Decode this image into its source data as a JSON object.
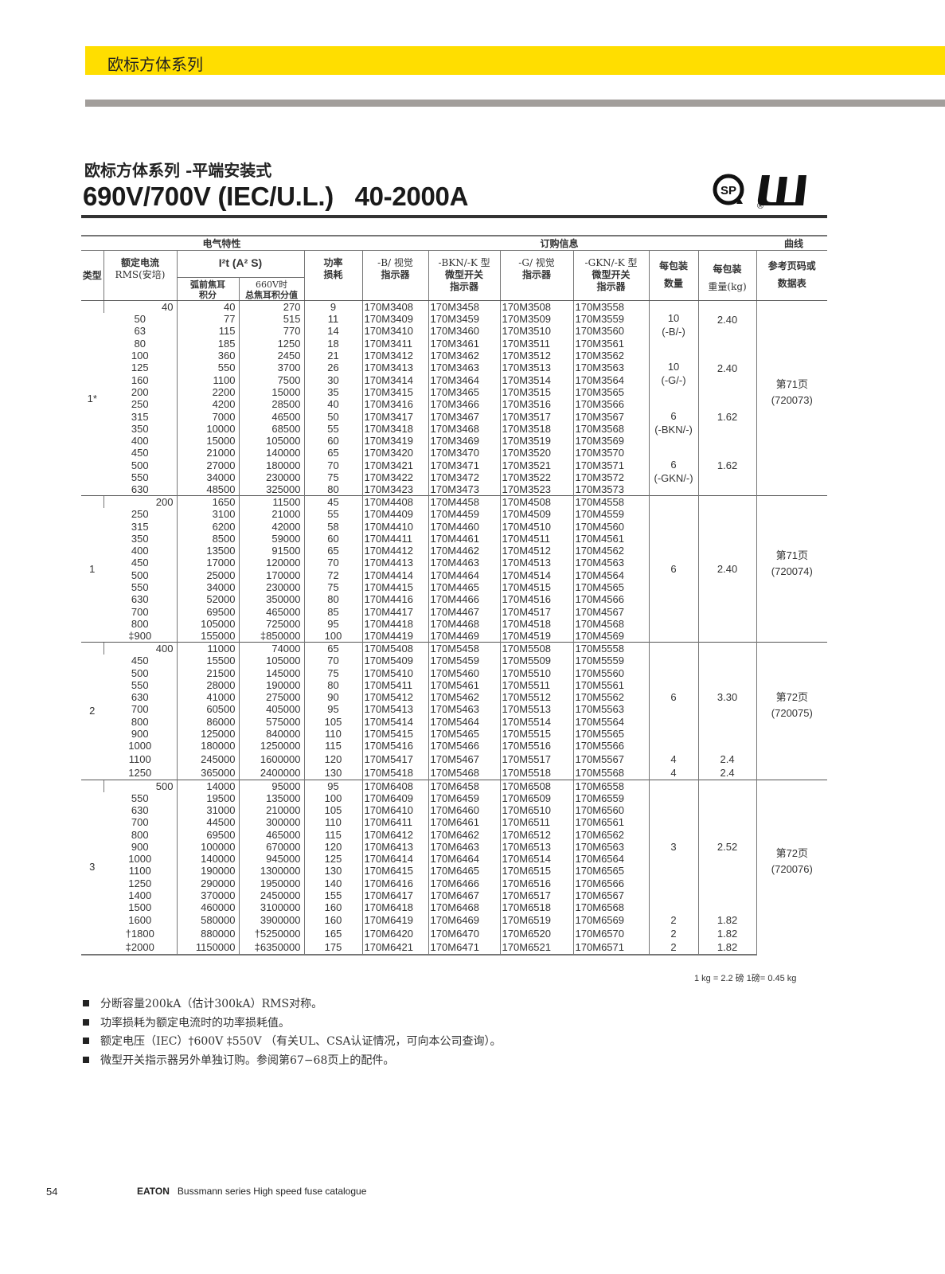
{
  "header": {
    "band_title": "欧标方体系列"
  },
  "page_subtitle": "欧标方体系列 -平端安装式",
  "page_title": "690V/700V (IEC/U.L.)   40-2000A",
  "logos": [
    "CSA",
    "UL"
  ],
  "colors": {
    "accent_yellow": "#ffde00",
    "gray_bar": "#a29e9b"
  },
  "table": {
    "group_headers": {
      "electrical": "电气特性",
      "ordering": "订购信息",
      "curve": "曲线"
    },
    "headers": {
      "type": "类型",
      "rated_current": [
        "额定电流",
        "RMS(安培)"
      ],
      "i2t": "I²t (A² S)",
      "pre_arc": [
        "弧前焦耳",
        "积分"
      ],
      "total": [
        "660V时",
        "总焦耳积分值"
      ],
      "power": [
        "功率",
        "损耗"
      ],
      "b": [
        "-B/ 视觉",
        "指示器"
      ],
      "bkn": [
        "-BKN/-K 型",
        "微型开关",
        "指示器"
      ],
      "g": [
        "-G/ 视觉",
        "指示器"
      ],
      "gkn": [
        "-GKN/-K 型",
        "微型开关",
        "指示器"
      ],
      "qty": [
        "每包装",
        "数量"
      ],
      "weight": [
        "每包装",
        "重量(kg)"
      ],
      "ref": [
        "参考页码或",
        "数据表"
      ]
    },
    "sections": [
      {
        "type": "1*",
        "ref_page": "第71页",
        "ref_sheet": "(720073)",
        "packs": [
          {
            "rows": 4,
            "qty": "10",
            "qty_note": "(-B/-)",
            "weight": "2.40"
          },
          {
            "rows": 4,
            "qty": "10",
            "qty_note": "(-G/-)",
            "weight": "2.40"
          },
          {
            "rows": 4,
            "qty": "6",
            "qty_note": "(-BKN/-)",
            "weight": "1.62"
          },
          {
            "rows": 4,
            "qty": "6",
            "qty_note": "(-GKN/-)",
            "weight": "1.62"
          }
        ],
        "rows": [
          [
            "40",
            "40",
            "270",
            "9",
            "170M3408",
            "170M3458",
            "170M3508",
            "170M3558"
          ],
          [
            "50",
            "77",
            "515",
            "11",
            "170M3409",
            "170M3459",
            "170M3509",
            "170M3559"
          ],
          [
            "63",
            "115",
            "770",
            "14",
            "170M3410",
            "170M3460",
            "170M3510",
            "170M3560"
          ],
          [
            "80",
            "185",
            "1250",
            "18",
            "170M3411",
            "170M3461",
            "170M3511",
            "170M3561"
          ],
          [
            "100",
            "360",
            "2450",
            "21",
            "170M3412",
            "170M3462",
            "170M3512",
            "170M3562"
          ],
          [
            "125",
            "550",
            "3700",
            "26",
            "170M3413",
            "170M3463",
            "170M3513",
            "170M3563"
          ],
          [
            "160",
            "1100",
            "7500",
            "30",
            "170M3414",
            "170M3464",
            "170M3514",
            "170M3564"
          ],
          [
            "200",
            "2200",
            "15000",
            "35",
            "170M3415",
            "170M3465",
            "170M3515",
            "170M3565"
          ],
          [
            "250",
            "4200",
            "28500",
            "40",
            "170M3416",
            "170M3466",
            "170M3516",
            "170M3566"
          ],
          [
            "315",
            "7000",
            "46500",
            "50",
            "170M3417",
            "170M3467",
            "170M3517",
            "170M3567"
          ],
          [
            "350",
            "10000",
            "68500",
            "55",
            "170M3418",
            "170M3468",
            "170M3518",
            "170M3568"
          ],
          [
            "400",
            "15000",
            "105000",
            "60",
            "170M3419",
            "170M3469",
            "170M3519",
            "170M3569"
          ],
          [
            "450",
            "21000",
            "140000",
            "65",
            "170M3420",
            "170M3470",
            "170M3520",
            "170M3570"
          ],
          [
            "500",
            "27000",
            "180000",
            "70",
            "170M3421",
            "170M3471",
            "170M3521",
            "170M3571"
          ],
          [
            "550",
            "34000",
            "230000",
            "75",
            "170M3422",
            "170M3472",
            "170M3522",
            "170M3572"
          ],
          [
            "630",
            "48500",
            "325000",
            "80",
            "170M3423",
            "170M3473",
            "170M3523",
            "170M3573"
          ]
        ]
      },
      {
        "type": "1",
        "ref_page": "第71页",
        "ref_sheet": "(720074)",
        "packs": [
          {
            "rows": 12,
            "qty": "6",
            "weight": "2.40"
          }
        ],
        "rows": [
          [
            "200",
            "1650",
            "11500",
            "45",
            "170M4408",
            "170M4458",
            "170M4508",
            "170M4558"
          ],
          [
            "250",
            "3100",
            "21000",
            "55",
            "170M4409",
            "170M4459",
            "170M4509",
            "170M4559"
          ],
          [
            "315",
            "6200",
            "42000",
            "58",
            "170M4410",
            "170M4460",
            "170M4510",
            "170M4560"
          ],
          [
            "350",
            "8500",
            "59000",
            "60",
            "170M4411",
            "170M4461",
            "170M4511",
            "170M4561"
          ],
          [
            "400",
            "13500",
            "91500",
            "65",
            "170M4412",
            "170M4462",
            "170M4512",
            "170M4562"
          ],
          [
            "450",
            "17000",
            "120000",
            "70",
            "170M4413",
            "170M4463",
            "170M4513",
            "170M4563"
          ],
          [
            "500",
            "25000",
            "170000",
            "72",
            "170M4414",
            "170M4464",
            "170M4514",
            "170M4564"
          ],
          [
            "550",
            "34000",
            "230000",
            "75",
            "170M4415",
            "170M4465",
            "170M4515",
            "170M4565"
          ],
          [
            "630",
            "52000",
            "350000",
            "80",
            "170M4416",
            "170M4466",
            "170M4516",
            "170M4566"
          ],
          [
            "700",
            "69500",
            "465000",
            "85",
            "170M4417",
            "170M4467",
            "170M4517",
            "170M4567"
          ],
          [
            "800",
            "105000",
            "725000",
            "95",
            "170M4418",
            "170M4468",
            "170M4518",
            "170M4568"
          ],
          [
            "‡900",
            "155000",
            "‡850000",
            "100",
            "170M4419",
            "170M4469",
            "170M4519",
            "170M4569"
          ]
        ]
      },
      {
        "type": "2",
        "ref_page": "第72页",
        "ref_sheet": "(720075)",
        "packs": [
          {
            "rows": 9,
            "qty": "6",
            "weight": "3.30"
          },
          {
            "rows": 1,
            "qty": "4",
            "weight": "2.4"
          },
          {
            "rows": 1,
            "qty": "4",
            "weight": "2.4"
          }
        ],
        "rows": [
          [
            "400",
            "11000",
            "74000",
            "65",
            "170M5408",
            "170M5458",
            "170M5508",
            "170M5558"
          ],
          [
            "450",
            "15500",
            "105000",
            "70",
            "170M5409",
            "170M5459",
            "170M5509",
            "170M5559"
          ],
          [
            "500",
            "21500",
            "145000",
            "75",
            "170M5410",
            "170M5460",
            "170M5510",
            "170M5560"
          ],
          [
            "550",
            "28000",
            "190000",
            "80",
            "170M5411",
            "170M5461",
            "170M5511",
            "170M5561"
          ],
          [
            "630",
            "41000",
            "275000",
            "90",
            "170M5412",
            "170M5462",
            "170M5512",
            "170M5562"
          ],
          [
            "700",
            "60500",
            "405000",
            "95",
            "170M5413",
            "170M5463",
            "170M5513",
            "170M5563"
          ],
          [
            "800",
            "86000",
            "575000",
            "105",
            "170M5414",
            "170M5464",
            "170M5514",
            "170M5564"
          ],
          [
            "900",
            "125000",
            "840000",
            "110",
            "170M5415",
            "170M5465",
            "170M5515",
            "170M5565"
          ],
          [
            "1000",
            "180000",
            "1250000",
            "115",
            "170M5416",
            "170M5466",
            "170M5516",
            "170M5566"
          ],
          [
            "1100",
            "245000",
            "1600000",
            "120",
            "170M5417",
            "170M5467",
            "170M5517",
            "170M5567"
          ],
          [
            "1250",
            "365000",
            "2400000",
            "130",
            "170M5418",
            "170M5468",
            "170M5518",
            "170M5568"
          ]
        ]
      },
      {
        "type": "3",
        "ref_page": "第72页",
        "ref_sheet": "(720076)",
        "packs": [
          {
            "rows": 11,
            "qty": "3",
            "weight": "2.52"
          },
          {
            "rows": 1,
            "qty": "2",
            "weight": "1.82"
          },
          {
            "rows": 1,
            "qty": "2",
            "weight": "1.82"
          },
          {
            "rows": 1,
            "qty": "2",
            "weight": "1.82"
          }
        ],
        "rows": [
          [
            "500",
            "14000",
            "95000",
            "95",
            "170M6408",
            "170M6458",
            "170M6508",
            "170M6558"
          ],
          [
            "550",
            "19500",
            "135000",
            "100",
            "170M6409",
            "170M6459",
            "170M6509",
            "170M6559"
          ],
          [
            "630",
            "31000",
            "210000",
            "105",
            "170M6410",
            "170M6460",
            "170M6510",
            "170M6560"
          ],
          [
            "700",
            "44500",
            "300000",
            "110",
            "170M6411",
            "170M6461",
            "170M6511",
            "170M6561"
          ],
          [
            "800",
            "69500",
            "465000",
            "115",
            "170M6412",
            "170M6462",
            "170M6512",
            "170M6562"
          ],
          [
            "900",
            "100000",
            "670000",
            "120",
            "170M6413",
            "170M6463",
            "170M6513",
            "170M6563"
          ],
          [
            "1000",
            "140000",
            "945000",
            "125",
            "170M6414",
            "170M6464",
            "170M6514",
            "170M6564"
          ],
          [
            "1100",
            "190000",
            "1300000",
            "130",
            "170M6415",
            "170M6465",
            "170M6515",
            "170M6565"
          ],
          [
            "1250",
            "290000",
            "1950000",
            "140",
            "170M6416",
            "170M6466",
            "170M6516",
            "170M6566"
          ],
          [
            "1400",
            "370000",
            "2450000",
            "155",
            "170M6417",
            "170M6467",
            "170M6517",
            "170M6567"
          ],
          [
            "1500",
            "460000",
            "3100000",
            "160",
            "170M6418",
            "170M6468",
            "170M6518",
            "170M6568"
          ],
          [
            "1600",
            "580000",
            "3900000",
            "160",
            "170M6419",
            "170M6469",
            "170M6519",
            "170M6569"
          ],
          [
            "†1800",
            "880000",
            "†5250000",
            "165",
            "170M6420",
            "170M6470",
            "170M6520",
            "170M6570"
          ],
          [
            "‡2000",
            "1150000",
            "‡6350000",
            "175",
            "170M6421",
            "170M6471",
            "170M6521",
            "170M6571"
          ]
        ]
      }
    ]
  },
  "conversion": "1 kg = 2.2 磅    1磅= 0.45 kg",
  "notes": [
    "分断容量200kA（估计300kA）RMS对称。",
    "功率损耗为额定电流时的功率损耗值。",
    "额定电压（IEC）†600V    ‡550V   （有关UL、CSA认证情况，可向本公司查询）。",
    "微型开关指示器另外单独订购。参阅第67−68页上的配件。"
  ],
  "footer": {
    "page_number": "54",
    "brand": "EATON",
    "catalogue": "Bussmann series High speed fuse catalogue"
  }
}
